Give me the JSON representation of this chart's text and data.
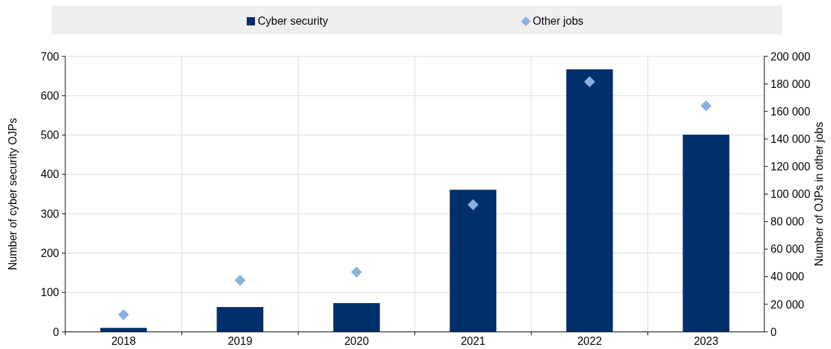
{
  "chart_data": {
    "type": "bar",
    "categories": [
      "2018",
      "2019",
      "2020",
      "2021",
      "2022",
      "2023"
    ],
    "series": [
      {
        "name": "Cyber security",
        "color": "#002f6c",
        "values": [
          10,
          63,
          73,
          361,
          667,
          501
        ]
      },
      {
        "name": "Other jobs",
        "type": "scatter",
        "color": "#8cb0dc",
        "axis": "y2",
        "marker": "diamond",
        "values": [
          12500,
          37400,
          43400,
          92300,
          181500,
          164100
        ]
      }
    ],
    "ylabel": "Number of cyber security OJPs",
    "y2label": "Number of OJPs in other jobs",
    "ylim": [
      0,
      700
    ],
    "yticks": [
      0,
      100,
      200,
      300,
      400,
      500,
      600,
      700
    ],
    "y2lim": [
      0,
      200000
    ],
    "y2ticks": [
      0,
      {
        "value": 20000,
        "label": "20 000"
      },
      {
        "value": 40000,
        "label": "40 000"
      },
      {
        "value": 60000,
        "label": "60 000"
      },
      {
        "value": 80000,
        "label": "80 000"
      },
      {
        "value": 100000,
        "label": "100 000"
      },
      {
        "value": 120000,
        "label": "120 000"
      },
      {
        "value": 140000,
        "label": "140 000"
      },
      {
        "value": 160000,
        "label": "160 000"
      },
      {
        "value": 180000,
        "label": "180 000"
      },
      {
        "value": 200000,
        "label": "200 000"
      }
    ],
    "grid": true,
    "legend": "top"
  }
}
